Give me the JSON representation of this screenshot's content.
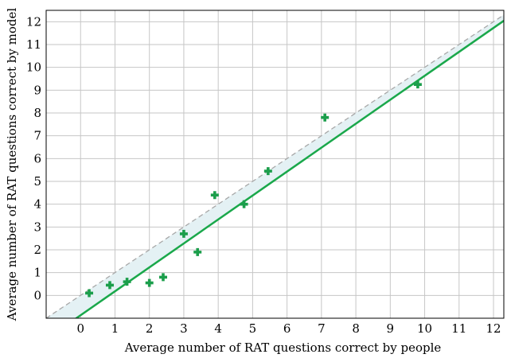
{
  "chart_data": {
    "type": "scatter",
    "xlabel": "Average number of RAT questions correct by people",
    "ylabel": "Average number of RAT questions correct by model",
    "xlim": [
      -1,
      12.3
    ],
    "ylim": [
      -1,
      12.5
    ],
    "xticks": [
      0,
      1,
      2,
      3,
      4,
      5,
      6,
      7,
      8,
      9,
      10,
      11,
      12
    ],
    "yticks": [
      0,
      1,
      2,
      3,
      4,
      5,
      6,
      7,
      8,
      9,
      10,
      11,
      12
    ],
    "grid": true,
    "points": [
      {
        "x": 0.25,
        "y": 0.1
      },
      {
        "x": 0.85,
        "y": 0.45
      },
      {
        "x": 1.35,
        "y": 0.6
      },
      {
        "x": 2.0,
        "y": 0.55
      },
      {
        "x": 2.4,
        "y": 0.8
      },
      {
        "x": 3.0,
        "y": 2.7
      },
      {
        "x": 3.4,
        "y": 1.9
      },
      {
        "x": 3.9,
        "y": 4.4
      },
      {
        "x": 4.75,
        "y": 4.0
      },
      {
        "x": 5.45,
        "y": 5.45
      },
      {
        "x": 7.1,
        "y": 7.8
      },
      {
        "x": 9.8,
        "y": 9.25
      }
    ],
    "fit_line": {
      "slope": 1.05,
      "intercept": -0.87
    },
    "identity_line": {
      "slope": 1,
      "intercept": 0
    },
    "colors": {
      "marker": "#1b9e4b",
      "fit": "#1aa84b",
      "identity": "#a8a8a8",
      "shade": "#e4f1f4",
      "grid": "#c6c6c6"
    }
  }
}
